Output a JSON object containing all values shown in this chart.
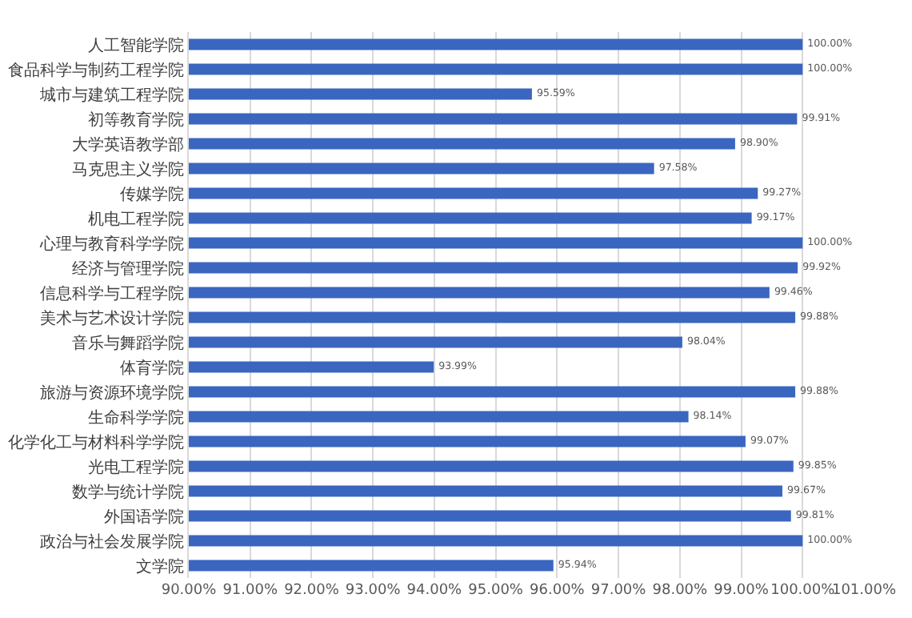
{
  "chart_data": {
    "type": "bar",
    "orientation": "horizontal",
    "categories": [
      "人工智能学院",
      "食品科学与制药工程学院",
      "城市与建筑工程学院",
      "初等教育学院",
      "大学英语教学部",
      "马克思主义学院",
      "传媒学院",
      "机电工程学院",
      "心理与教育科学学院",
      "经济与管理学院",
      "信息科学与工程学院",
      "美术与艺术设计学院",
      "音乐与舞蹈学院",
      "体育学院",
      "旅游与资源环境学院",
      "生命科学学院",
      "化学化工与材料科学学院",
      "光电工程学院",
      "数学与统计学院",
      "外国语学院",
      "政治与社会发展学院",
      "文学院"
    ],
    "values": [
      100.0,
      100.0,
      95.59,
      99.91,
      98.9,
      97.58,
      99.27,
      99.17,
      100.0,
      99.92,
      99.46,
      99.88,
      98.04,
      93.99,
      99.88,
      98.14,
      99.07,
      99.85,
      99.67,
      99.81,
      100.0,
      95.94
    ],
    "value_labels": [
      "100.00%",
      "100.00%",
      "95.59%",
      "99.91%",
      "98.90%",
      "97.58%",
      "99.27%",
      "99.17%",
      "100.00%",
      "99.92%",
      "99.46%",
      "99.88%",
      "98.04%",
      "93.99%",
      "99.88%",
      "98.14%",
      "99.07%",
      "99.85%",
      "99.67%",
      "99.81%",
      "100.00%",
      "95.94%"
    ],
    "color": "#3a66c0",
    "xlim": [
      90,
      101
    ],
    "xticks": [
      {
        "value": 90,
        "label": "90.00%"
      },
      {
        "value": 91,
        "label": "91.00%"
      },
      {
        "value": 92,
        "label": "92.00%"
      },
      {
        "value": 93,
        "label": "93.00%"
      },
      {
        "value": 94,
        "label": "94.00%"
      },
      {
        "value": 95,
        "label": "95.00%"
      },
      {
        "value": 96,
        "label": "96.00%"
      },
      {
        "value": 97,
        "label": "97.00%"
      },
      {
        "value": 98,
        "label": "98.00%"
      },
      {
        "value": 99,
        "label": "99.00%"
      },
      {
        "value": 100,
        "label": "100.00%"
      },
      {
        "value": 101,
        "label": "101.00%"
      }
    ],
    "grid": "x",
    "legend": false
  }
}
